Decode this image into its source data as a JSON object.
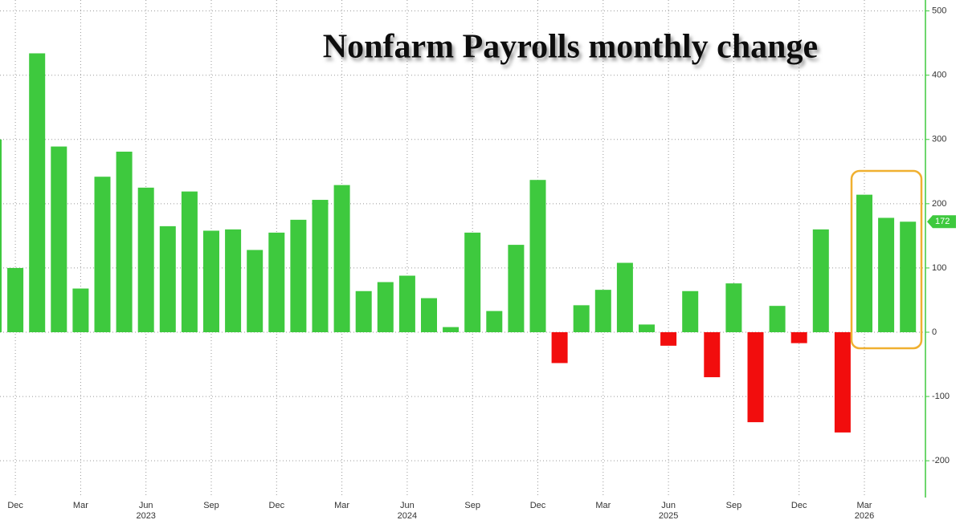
{
  "chart_data": {
    "type": "bar",
    "title": "Nonfarm Payrolls monthly change",
    "categories": [
      null,
      "Dec",
      null,
      null,
      "Mar",
      null,
      null,
      "Jun",
      null,
      null,
      "Sep",
      null,
      null,
      "Dec",
      null,
      null,
      "Mar",
      null,
      null,
      "Jun",
      null,
      null,
      "Sep",
      null,
      null,
      "Dec",
      null,
      null,
      "Mar",
      null,
      null,
      "Jun",
      null,
      null,
      "Sep",
      null,
      null,
      "Dec",
      null,
      null,
      "Mar",
      null,
      null
    ],
    "year_labels": [
      null,
      null,
      null,
      null,
      null,
      null,
      null,
      "2023",
      null,
      null,
      null,
      null,
      null,
      null,
      null,
      null,
      null,
      null,
      null,
      "2024",
      null,
      null,
      null,
      null,
      null,
      null,
      null,
      null,
      null,
      null,
      null,
      "2025",
      null,
      null,
      null,
      null,
      null,
      null,
      null,
      null,
      "2026",
      null,
      null
    ],
    "values": [
      300,
      100,
      434,
      289,
      68,
      242,
      281,
      225,
      165,
      219,
      158,
      160,
      128,
      155,
      175,
      206,
      229,
      64,
      78,
      88,
      53,
      8,
      155,
      33,
      136,
      237,
      -48,
      42,
      66,
      108,
      12,
      -21,
      64,
      -70,
      76,
      -140,
      41,
      -17,
      160,
      -156,
      214,
      178,
      172
    ],
    "positive_color": "#3ec93e",
    "negative_color": "#f20d0d",
    "ylim": [
      -251,
      517
    ],
    "yticks": [
      500,
      400,
      300,
      200,
      100,
      0,
      -100,
      -200
    ],
    "grid": true
  }
}
